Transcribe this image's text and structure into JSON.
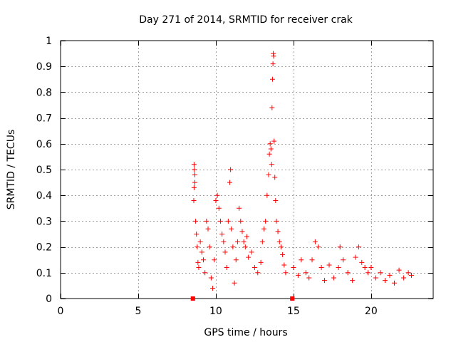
{
  "chart_data": {
    "type": "scatter",
    "title": "Day 271 of 2014, SRMTID for receiver crak",
    "xlabel": "GPS time / hours",
    "ylabel": "SRMTID / TECUs",
    "xlim": [
      0,
      24
    ],
    "ylim": [
      0,
      1
    ],
    "x_ticks": [
      0,
      5,
      10,
      15,
      20
    ],
    "x_tick_labels": [
      "0",
      "5",
      "10",
      "15",
      "20"
    ],
    "y_ticks": [
      0,
      0.1,
      0.2,
      0.3,
      0.4,
      0.5,
      0.6,
      0.7,
      0.8,
      0.9,
      1
    ],
    "y_tick_labels": [
      "0",
      "0.1",
      "0.2",
      "0.3",
      "0.4",
      "0.5",
      "0.6",
      "0.7",
      "0.8",
      "0.9",
      "1"
    ],
    "grid": true,
    "marker": "+",
    "marker_color": "#ff0000",
    "series": [
      {
        "name": "SRMTID",
        "points": [
          [
            8.5,
            0.0
          ],
          [
            8.55,
            0.0
          ],
          [
            14.9,
            0.0
          ],
          [
            14.95,
            0.0
          ],
          [
            8.6,
            0.52
          ],
          [
            8.62,
            0.5
          ],
          [
            8.65,
            0.48
          ],
          [
            8.58,
            0.38
          ],
          [
            8.6,
            0.43
          ],
          [
            8.65,
            0.45
          ],
          [
            8.7,
            0.3
          ],
          [
            8.75,
            0.25
          ],
          [
            8.8,
            0.2
          ],
          [
            8.85,
            0.14
          ],
          [
            8.9,
            0.12
          ],
          [
            9.0,
            0.22
          ],
          [
            9.1,
            0.18
          ],
          [
            9.2,
            0.15
          ],
          [
            9.3,
            0.1
          ],
          [
            9.4,
            0.3
          ],
          [
            9.5,
            0.27
          ],
          [
            9.6,
            0.2
          ],
          [
            9.7,
            0.08
          ],
          [
            9.8,
            0.04
          ],
          [
            9.9,
            0.15
          ],
          [
            10.0,
            0.38
          ],
          [
            10.1,
            0.4
          ],
          [
            10.2,
            0.35
          ],
          [
            10.3,
            0.3
          ],
          [
            10.4,
            0.25
          ],
          [
            10.5,
            0.22
          ],
          [
            10.6,
            0.18
          ],
          [
            10.7,
            0.12
          ],
          [
            10.8,
            0.3
          ],
          [
            10.9,
            0.45
          ],
          [
            10.95,
            0.5
          ],
          [
            11.0,
            0.27
          ],
          [
            11.1,
            0.2
          ],
          [
            11.2,
            0.06
          ],
          [
            11.3,
            0.15
          ],
          [
            11.4,
            0.22
          ],
          [
            11.5,
            0.35
          ],
          [
            11.6,
            0.3
          ],
          [
            11.7,
            0.26
          ],
          [
            11.8,
            0.22
          ],
          [
            11.9,
            0.2
          ],
          [
            12.0,
            0.24
          ],
          [
            12.1,
            0.16
          ],
          [
            12.3,
            0.18
          ],
          [
            12.5,
            0.12
          ],
          [
            12.7,
            0.1
          ],
          [
            12.9,
            0.14
          ],
          [
            13.0,
            0.22
          ],
          [
            13.1,
            0.27
          ],
          [
            13.2,
            0.3
          ],
          [
            13.3,
            0.4
          ],
          [
            13.4,
            0.48
          ],
          [
            13.45,
            0.56
          ],
          [
            13.5,
            0.6
          ],
          [
            13.55,
            0.58
          ],
          [
            13.6,
            0.52
          ],
          [
            13.62,
            0.74
          ],
          [
            13.65,
            0.85
          ],
          [
            13.68,
            0.91
          ],
          [
            13.7,
            0.95
          ],
          [
            13.72,
            0.94
          ],
          [
            13.75,
            0.61
          ],
          [
            13.8,
            0.47
          ],
          [
            13.85,
            0.38
          ],
          [
            13.9,
            0.3
          ],
          [
            14.0,
            0.26
          ],
          [
            14.1,
            0.22
          ],
          [
            14.2,
            0.2
          ],
          [
            14.3,
            0.17
          ],
          [
            14.4,
            0.13
          ],
          [
            14.5,
            0.1
          ],
          [
            15.0,
            0.12
          ],
          [
            15.3,
            0.09
          ],
          [
            15.5,
            0.15
          ],
          [
            15.8,
            0.1
          ],
          [
            16.0,
            0.08
          ],
          [
            16.2,
            0.15
          ],
          [
            16.4,
            0.22
          ],
          [
            16.6,
            0.2
          ],
          [
            16.8,
            0.12
          ],
          [
            17.0,
            0.07
          ],
          [
            17.3,
            0.13
          ],
          [
            17.6,
            0.08
          ],
          [
            17.9,
            0.12
          ],
          [
            18.0,
            0.2
          ],
          [
            18.2,
            0.15
          ],
          [
            18.5,
            0.1
          ],
          [
            18.8,
            0.07
          ],
          [
            19.0,
            0.16
          ],
          [
            19.2,
            0.2
          ],
          [
            19.4,
            0.14
          ],
          [
            19.6,
            0.12
          ],
          [
            19.8,
            0.1
          ],
          [
            20.0,
            0.12
          ],
          [
            20.3,
            0.08
          ],
          [
            20.6,
            0.1
          ],
          [
            20.9,
            0.07
          ],
          [
            21.2,
            0.09
          ],
          [
            21.5,
            0.06
          ],
          [
            21.8,
            0.11
          ],
          [
            22.1,
            0.08
          ],
          [
            22.4,
            0.1
          ],
          [
            22.6,
            0.09
          ]
        ]
      }
    ]
  }
}
